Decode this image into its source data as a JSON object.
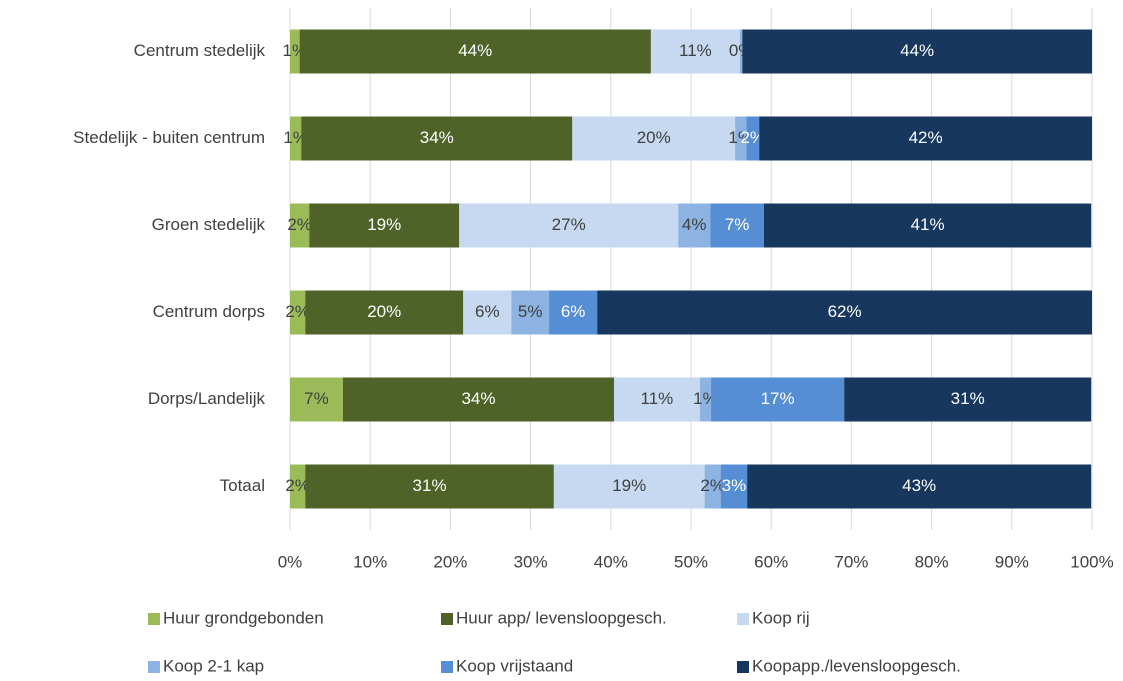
{
  "chart_data": {
    "type": "stacked-bar-horizontal",
    "categories": [
      "Centrum stedelijk",
      "Stedelijk - buiten centrum",
      "Groen stedelijk",
      "Centrum dorps",
      "Dorps/Landelijk",
      "Totaal"
    ],
    "series": [
      {
        "name": "Huur grondgebonden",
        "color": "#9bbb59",
        "values": [
          1.2,
          1.4,
          2.4,
          1.9,
          6.6,
          1.9
        ],
        "value_labels": [
          "1%",
          "1%",
          "2%",
          "2%",
          "7%",
          "2%"
        ]
      },
      {
        "name": "Huur app/ levensloopgesch.",
        "color": "#4f6228",
        "values": [
          43.8,
          33.8,
          18.7,
          19.7,
          33.8,
          31.0
        ],
        "value_labels": [
          "44%",
          "34%",
          "19%",
          "20%",
          "34%",
          "31%"
        ]
      },
      {
        "name": "Koop rij",
        "color": "#c6d9f0",
        "values": [
          11.1,
          20.3,
          27.3,
          6.0,
          10.7,
          18.8
        ],
        "value_labels": [
          "11%",
          "20%",
          "27%",
          "6%",
          "11%",
          "19%"
        ]
      },
      {
        "name": "Koop 2-1 kap",
        "color": "#8db3e2",
        "values": [
          0.3,
          1.4,
          4.0,
          4.7,
          1.4,
          2.0
        ],
        "value_labels": [
          "0%",
          "1%",
          "4%",
          "5%",
          "1%",
          "2%"
        ]
      },
      {
        "name": "Koop vrijstaand",
        "color": "#558ed5",
        "values": [
          0,
          1.6,
          6.7,
          6.0,
          16.6,
          3.3
        ],
        "value_labels": [
          null,
          "2%",
          "7%",
          "6%",
          "17%",
          "3%"
        ]
      },
      {
        "name": "Koopapp./levensloopgesch.",
        "color": "#17375e",
        "values": [
          43.6,
          41.5,
          40.8,
          61.7,
          30.8,
          42.9
        ],
        "value_labels": [
          "44%",
          "42%",
          "41%",
          "62%",
          "31%",
          "43%"
        ]
      }
    ],
    "xlim": [
      0,
      100
    ],
    "xticks": [
      {
        "value": 0,
        "label": "0%"
      },
      {
        "value": 10,
        "label": "10%"
      },
      {
        "value": 20,
        "label": "20%"
      },
      {
        "value": 30,
        "label": "30%"
      },
      {
        "value": 40,
        "label": "40%"
      },
      {
        "value": 50,
        "label": "50%"
      },
      {
        "value": 60,
        "label": "60%"
      },
      {
        "value": 70,
        "label": "70%"
      },
      {
        "value": 80,
        "label": "80%"
      },
      {
        "value": 90,
        "label": "90%"
      },
      {
        "value": 100,
        "label": "100%"
      }
    ],
    "grid": true,
    "legend": "bottom"
  }
}
